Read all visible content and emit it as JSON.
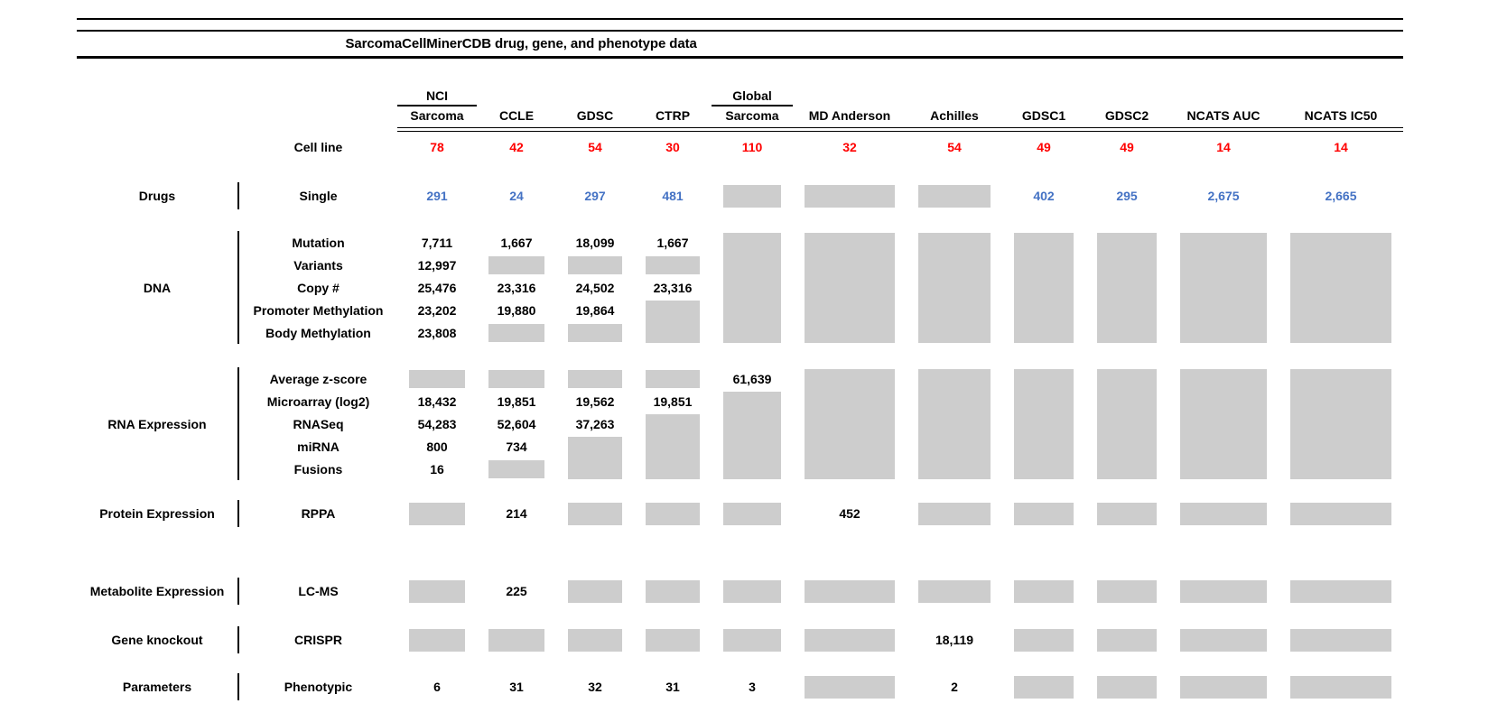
{
  "title": "SarcomaCellMinerCDB drug, gene, and phenotype data",
  "colors": {
    "gray_box": "#cdcdcd",
    "red_counts": "#ff0000",
    "blue_drug_counts": "#4472c4",
    "text": "#000000"
  },
  "chart_data": {
    "type": "table",
    "title": "SarcomaCellMinerCDB drug, gene, and phenotype data",
    "cell_line_label": "Cell line",
    "gray_marker_legend": "G = gray filled box (no value shown), G:n = gray box spanning n rows",
    "columns": [
      {
        "top": "NCI",
        "label": "Sarcoma",
        "cell_lines": "78"
      },
      {
        "label": "CCLE",
        "cell_lines": "42"
      },
      {
        "label": "GDSC",
        "cell_lines": "54"
      },
      {
        "label": "CTRP",
        "cell_lines": "30"
      },
      {
        "top": "Global",
        "label": "Sarcoma",
        "cell_lines": "110"
      },
      {
        "label": "MD Anderson",
        "cell_lines": "32"
      },
      {
        "label": "Achilles",
        "cell_lines": "54"
      },
      {
        "label": "GDSC1",
        "cell_lines": "49"
      },
      {
        "label": "GDSC2",
        "cell_lines": "49"
      },
      {
        "label": "NCATS AUC",
        "cell_lines": "14"
      },
      {
        "label": "NCATS IC50",
        "cell_lines": "14"
      }
    ],
    "sections": [
      {
        "category": "Drugs",
        "rows": [
          {
            "label": "Single",
            "color": "blue",
            "cells": [
              "291",
              "24",
              "297",
              "481",
              "G",
              "G",
              "G",
              "402",
              "295",
              "2,675",
              "2,665"
            ]
          }
        ]
      },
      {
        "category": "DNA",
        "rows": [
          {
            "label": "Mutation",
            "cells": [
              "7,711",
              "1,667",
              "18,099",
              "1,667",
              "G:5",
              "G:5",
              "G:5",
              "G:5",
              "G:5",
              "G:5",
              "G:5"
            ]
          },
          {
            "label": "Variants",
            "cells": [
              "12,997",
              "G",
              "G",
              "G",
              "",
              "",
              "",
              "",
              "",
              "",
              ""
            ]
          },
          {
            "label": "Copy #",
            "cells": [
              "25,476",
              "23,316",
              "24,502",
              "23,316",
              "",
              "",
              "",
              "",
              "",
              "",
              ""
            ]
          },
          {
            "label": "Promoter Methylation",
            "cells": [
              "23,202",
              "19,880",
              "19,864",
              "G:2",
              "",
              "",
              "",
              "",
              "",
              "",
              ""
            ]
          },
          {
            "label": "Body Methylation",
            "cells": [
              "23,808",
              "G",
              "G",
              "",
              "",
              "",
              "",
              "",
              "",
              "",
              ""
            ]
          }
        ]
      },
      {
        "category": "RNA Expression",
        "rows": [
          {
            "label": "Average z-score",
            "cells": [
              "G",
              "G",
              "G",
              "G",
              "61,639",
              "G:5",
              "G:5",
              "G:5",
              "G:5",
              "G:5",
              "G:5"
            ]
          },
          {
            "label": "Microarray (log2)",
            "cells": [
              "18,432",
              "19,851",
              "19,562",
              "19,851",
              "G:4",
              "",
              "",
              "",
              "",
              "",
              ""
            ]
          },
          {
            "label": "RNASeq",
            "cells": [
              "54,283",
              "52,604",
              "37,263",
              "G:3",
              "",
              "",
              "",
              "",
              "",
              "",
              ""
            ]
          },
          {
            "label": "miRNA",
            "cells": [
              "800",
              "734",
              "G:2",
              "",
              "",
              "",
              "",
              "",
              "",
              "",
              ""
            ]
          },
          {
            "label": "Fusions",
            "cells": [
              "16",
              "G",
              "",
              "",
              "",
              "",
              "",
              "",
              "",
              "",
              ""
            ]
          }
        ]
      },
      {
        "category": "Protein Expression",
        "rows": [
          {
            "label": "RPPA",
            "cells": [
              "G",
              "214",
              "G",
              "G",
              "G",
              "452",
              "G",
              "G",
              "G",
              "G",
              "G"
            ]
          }
        ]
      },
      {
        "category": "Metabolite Expression",
        "rows": [
          {
            "label": "LC-MS",
            "cells": [
              "G",
              "225",
              "G",
              "G",
              "G",
              "G",
              "G",
              "G",
              "G",
              "G",
              "G"
            ]
          }
        ]
      },
      {
        "category": "Gene knockout",
        "rows": [
          {
            "label": "CRISPR",
            "cells": [
              "G",
              "G",
              "G",
              "G",
              "G",
              "G",
              "18,119",
              "G",
              "G",
              "G",
              "G"
            ]
          }
        ]
      },
      {
        "category": "Parameters",
        "rows": [
          {
            "label": "Phenotypic",
            "cells": [
              "6",
              "31",
              "32",
              "31",
              "3",
              "G",
              "2",
              "G",
              "G",
              "G",
              "G"
            ]
          }
        ]
      }
    ]
  }
}
